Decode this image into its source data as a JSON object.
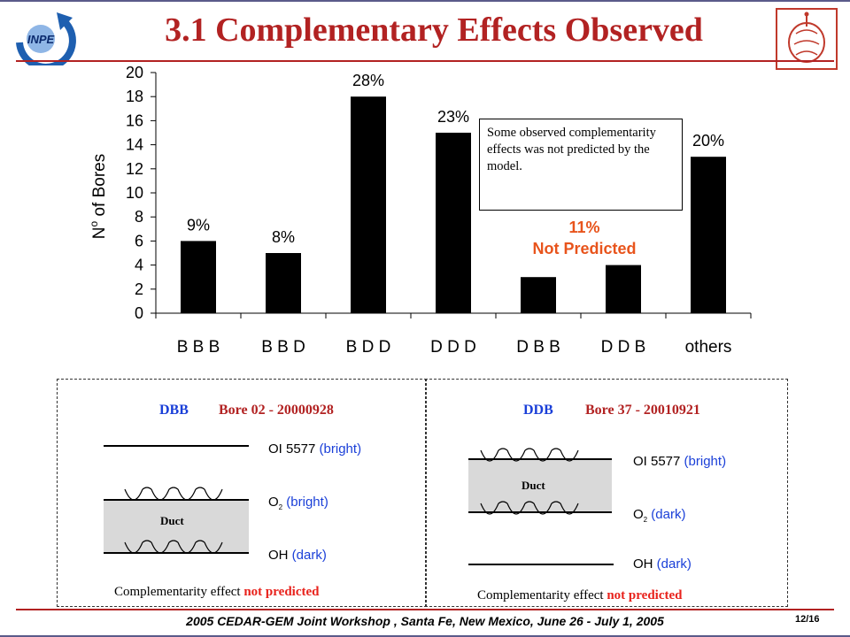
{
  "slide": {
    "title": "3.1 Complementary Effects Observed",
    "footer": "2005 CEDAR-GEM Joint Workshop , Santa Fe, New Mexico, June 26 - July 1, 2005",
    "page": "12/16",
    "logo_left_text": "INPE",
    "colors": {
      "title": "#b22222",
      "accent_blue": "#1a3fd8",
      "accent_orange": "#e8541c"
    }
  },
  "chart_data": {
    "type": "bar",
    "categories": [
      "B B B",
      "B B D",
      "B D D",
      "D D D",
      "D B B",
      "D D B",
      "others"
    ],
    "values": [
      6,
      5,
      18,
      15,
      3,
      4,
      13
    ],
    "bar_labels": [
      "9%",
      "8%",
      "28%",
      "23%",
      "",
      "",
      "20%"
    ],
    "ylabel": "N",
    "ylabel_sup": "o",
    "ylabel_rest": " of Bores",
    "ylim": [
      0,
      20
    ],
    "yticks": [
      0,
      2,
      4,
      6,
      8,
      10,
      12,
      14,
      16,
      18,
      20
    ],
    "bar_color": "#000000",
    "grid": false,
    "annotation_box": "Some observed complementarity effects was  not predicted by the model.",
    "annotation_pct": "11%",
    "annotation_text": "Not Predicted"
  },
  "panels": {
    "left": {
      "tag": "DBB",
      "bore": "Bore 02 - 20000928",
      "duct": "Duct",
      "rows": [
        {
          "species": "OI 5577",
          "state": "(bright)"
        },
        {
          "species": "O",
          "sub": "2",
          "state": "(bright)"
        },
        {
          "species": "OH",
          "state": "(dark)"
        }
      ],
      "caption_prefix": "Complementarity effect ",
      "caption_highlight": "not predicted"
    },
    "right": {
      "tag": "DDB",
      "bore": "Bore 37 - 20010921",
      "duct": "Duct",
      "rows": [
        {
          "species": "OI 5577",
          "state": "(bright)"
        },
        {
          "species": "O",
          "sub": "2",
          "state": "(dark)"
        },
        {
          "species": "OH",
          "state": "(dark)"
        }
      ],
      "caption_prefix": "Complementarity effect ",
      "caption_highlight": "not predicted"
    }
  }
}
